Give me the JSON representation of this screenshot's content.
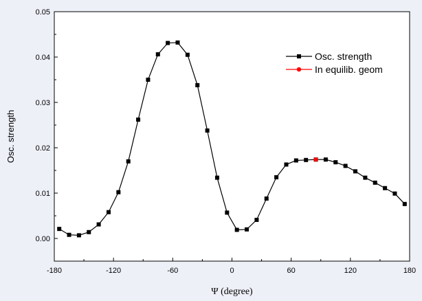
{
  "chart_data": {
    "type": "line",
    "title": "",
    "xlabel": "Ψ (degree)",
    "ylabel": "Osc. strength",
    "xlim": [
      -180,
      180
    ],
    "ylim": [
      -0.005,
      0.05
    ],
    "xticks": [
      -180,
      -120,
      -60,
      0,
      60,
      120,
      180
    ],
    "xtick_labels": [
      "-180",
      "-120",
      "-60",
      "0",
      "60",
      "120",
      "180"
    ],
    "yticks": [
      0.0,
      0.01,
      0.02,
      0.03,
      0.04,
      0.05
    ],
    "ytick_labels": [
      "0.00",
      "0.01",
      "0.02",
      "0.03",
      "0.04",
      "0.05"
    ],
    "grid": false,
    "legend_position": "top-right",
    "series": [
      {
        "name": "Osc. strength",
        "color": "#000000",
        "marker": "square",
        "x": [
          -175,
          -165,
          -155,
          -145,
          -135,
          -125,
          -115,
          -105,
          -95,
          -85,
          -75,
          -65,
          -55,
          -45,
          -35,
          -25,
          -15,
          -5,
          5,
          15,
          25,
          35,
          45,
          55,
          65,
          75,
          85,
          95,
          105,
          115,
          125,
          135,
          145,
          155,
          165,
          175
        ],
        "y": [
          0.0021,
          0.0008,
          0.0007,
          0.0014,
          0.0031,
          0.0058,
          0.0102,
          0.017,
          0.0262,
          0.035,
          0.0406,
          0.0431,
          0.0432,
          0.0405,
          0.0338,
          0.0238,
          0.0134,
          0.0057,
          0.0019,
          0.002,
          0.0041,
          0.0088,
          0.0135,
          0.0163,
          0.0172,
          0.0173,
          0.0174,
          0.0174,
          0.0168,
          0.016,
          0.0148,
          0.0134,
          0.0123,
          0.0111,
          0.0099,
          0.0076
        ]
      },
      {
        "name": "In equilib. geom",
        "color": "#ff0000",
        "marker": "circle",
        "x": [
          85
        ],
        "y": [
          0.0174
        ]
      }
    ]
  }
}
